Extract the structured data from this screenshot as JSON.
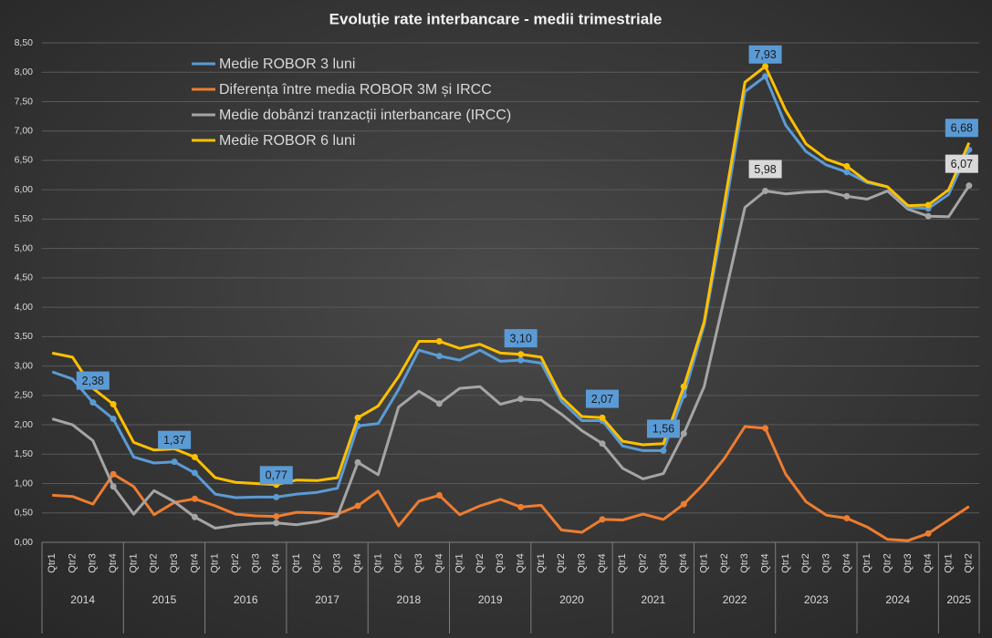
{
  "chart_data": {
    "type": "line",
    "title": "Evoluție  rate interbancare  - medii trimestriale",
    "categories": [
      "Qtr1",
      "Qtr2",
      "Qtr3",
      "Qtr4",
      "Qtr1",
      "Qtr2",
      "Qtr3",
      "Qtr4",
      "Qtr1",
      "Qtr2",
      "Qtr3",
      "Qtr4",
      "Qtr1",
      "Qtr2",
      "Qtr3",
      "Qtr4",
      "Qtr1",
      "Qtr2",
      "Qtr3",
      "Qtr4",
      "Qtr1",
      "Qtr2",
      "Qtr3",
      "Qtr4",
      "Qtr1",
      "Qtr2",
      "Qtr3",
      "Qtr4",
      "Qtr1",
      "Qtr2",
      "Qtr3",
      "Qtr4",
      "Qtr1",
      "Qtr2",
      "Qtr3",
      "Qtr4",
      "Qtr1",
      "Qtr2",
      "Qtr3",
      "Qtr4",
      "Qtr1",
      "Qtr2",
      "Qtr3",
      "Qtr4",
      "Qtr1",
      "Qtr2"
    ],
    "years": [
      "2014",
      "2015",
      "2016",
      "2017",
      "2018",
      "2019",
      "2020",
      "2021",
      "2022",
      "2023",
      "2024",
      "2025"
    ],
    "ylim": [
      0,
      8.5
    ],
    "yticks": [
      {
        "value": 0,
        "label": "0,00"
      },
      {
        "value": 0.5,
        "label": "0,50"
      },
      {
        "value": 1,
        "label": "1,00"
      },
      {
        "value": 1.5,
        "label": "1,50"
      },
      {
        "value": 2,
        "label": "2,00"
      },
      {
        "value": 2.5,
        "label": "2,50"
      },
      {
        "value": 3,
        "label": "3,00"
      },
      {
        "value": 3.5,
        "label": "3,50"
      },
      {
        "value": 4,
        "label": "4,00"
      },
      {
        "value": 4.5,
        "label": "4,50"
      },
      {
        "value": 5,
        "label": "5,00"
      },
      {
        "value": 5.5,
        "label": "5,50"
      },
      {
        "value": 6,
        "label": "6,00"
      },
      {
        "value": 6.5,
        "label": "6,50"
      },
      {
        "value": 7,
        "label": "7,00"
      },
      {
        "value": 7.5,
        "label": "7,50"
      },
      {
        "value": 8,
        "label": "8,00"
      },
      {
        "value": 8.5,
        "label": "8,50"
      }
    ],
    "grid": true,
    "legend": "upper left",
    "series": [
      {
        "name": "Medie ROBOR 3 luni",
        "color": "#5b9bd5",
        "values": [
          2.9,
          2.78,
          2.38,
          2.1,
          1.45,
          1.35,
          1.37,
          1.18,
          0.82,
          0.76,
          0.77,
          0.77,
          0.82,
          0.85,
          0.92,
          1.98,
          2.02,
          2.6,
          3.27,
          3.17,
          3.1,
          3.27,
          3.08,
          3.1,
          3.05,
          2.4,
          2.07,
          2.07,
          1.64,
          1.56,
          1.56,
          2.5,
          3.7,
          5.6,
          7.67,
          7.93,
          7.1,
          6.65,
          6.42,
          6.3,
          6.12,
          6.05,
          5.7,
          5.68,
          5.92,
          6.68
        ],
        "value_labels": [
          null,
          null,
          "2,38",
          null,
          null,
          null,
          "1,37",
          null,
          null,
          null,
          null,
          "0,77",
          null,
          null,
          null,
          null,
          null,
          null,
          null,
          null,
          null,
          null,
          null,
          "3,10",
          null,
          null,
          null,
          "2,07",
          null,
          null,
          "1,56",
          null,
          null,
          null,
          null,
          "7,93",
          null,
          null,
          null,
          null,
          null,
          null,
          null,
          null,
          null,
          "6,68"
        ]
      },
      {
        "name": "Diferența între media ROBOR 3M și IRCC",
        "color": "#ed7d31",
        "values": [
          0.8,
          0.78,
          0.65,
          1.16,
          0.95,
          0.47,
          0.68,
          0.74,
          0.62,
          0.48,
          0.45,
          0.44,
          0.51,
          0.5,
          0.48,
          0.62,
          0.87,
          0.28,
          0.7,
          0.8,
          0.47,
          0.62,
          0.73,
          0.6,
          0.63,
          0.21,
          0.17,
          0.39,
          0.38,
          0.48,
          0.39,
          0.65,
          1.0,
          1.43,
          1.97,
          1.94,
          1.16,
          0.69,
          0.46,
          0.41,
          0.26,
          0.05,
          0.03,
          0.15,
          0.38,
          0.61
        ]
      },
      {
        "name": "Medie dobânzi tranzacții interbancare (IRCC)",
        "color": "#a5a5a5",
        "values": [
          2.1,
          2.0,
          1.73,
          0.95,
          0.48,
          0.88,
          0.69,
          0.43,
          0.24,
          0.29,
          0.32,
          0.33,
          0.3,
          0.35,
          0.44,
          1.36,
          1.15,
          2.3,
          2.57,
          2.36,
          2.62,
          2.65,
          2.35,
          2.44,
          2.42,
          2.18,
          1.9,
          1.68,
          1.26,
          1.08,
          1.17,
          1.85,
          2.65,
          4.17,
          5.7,
          5.98,
          5.93,
          5.96,
          5.97,
          5.89,
          5.84,
          5.98,
          5.67,
          5.55,
          5.54,
          6.07
        ],
        "value_labels": [
          null,
          null,
          null,
          null,
          null,
          null,
          null,
          null,
          null,
          null,
          null,
          null,
          null,
          null,
          null,
          null,
          null,
          null,
          null,
          null,
          null,
          null,
          null,
          null,
          null,
          null,
          null,
          null,
          null,
          null,
          null,
          null,
          null,
          null,
          null,
          "5,98",
          null,
          null,
          null,
          null,
          null,
          null,
          null,
          null,
          null,
          "6,07"
        ]
      },
      {
        "name": "Medie ROBOR 6 luni",
        "color": "#ffc000",
        "values": [
          3.22,
          3.15,
          2.62,
          2.35,
          1.7,
          1.57,
          1.59,
          1.45,
          1.1,
          1.02,
          1.0,
          0.98,
          1.06,
          1.05,
          1.1,
          2.12,
          2.32,
          2.82,
          3.42,
          3.42,
          3.3,
          3.37,
          3.22,
          3.2,
          3.15,
          2.47,
          2.14,
          2.12,
          1.72,
          1.66,
          1.68,
          2.65,
          3.75,
          5.78,
          7.83,
          8.1,
          7.35,
          6.78,
          6.52,
          6.4,
          6.14,
          6.05,
          5.73,
          5.74,
          6.0,
          6.8
        ]
      }
    ]
  }
}
